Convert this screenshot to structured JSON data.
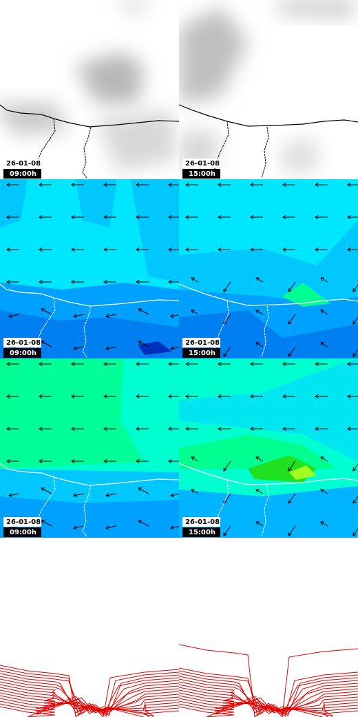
{
  "panels": [
    {
      "date": "26-01-08",
      "time": "09:00h"
    },
    {
      "date": "26-01-08",
      "time": "15:00h"
    },
    {
      "date": "26-01-08",
      "time": "09:00h"
    },
    {
      "date": "26-01-08",
      "time": "15:00h"
    },
    {
      "date": "26-01-08",
      "time": "09:00h"
    },
    {
      "date": "26-01-08",
      "time": "15:00h"
    }
  ]
}
